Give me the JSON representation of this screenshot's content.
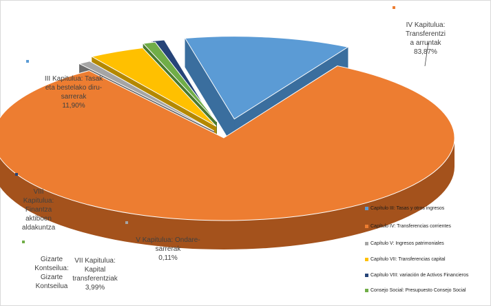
{
  "chart_data": {
    "type": "pie",
    "style": "3d-exploded",
    "slices": [
      {
        "label": "IV Kapitulua: Transferentzi a arruntak",
        "legend": "Capítulo IV: Transferencias corrientes",
        "value": 83.87,
        "value_text": "83,87%",
        "color": "#ED7D31",
        "side_color": "#A4521C",
        "label_text": "IV Kapitulua:\nTransferentzi\na arruntak\n83,87%"
      },
      {
        "label": "V Kapitulua: Ondare-sarrerak",
        "legend": "Capítulo V: Ingresos patrimoniales",
        "value": 0.11,
        "value_text": "0,11%",
        "color": "#A5A5A5",
        "side_color": "#6D6D6D",
        "label_text": "V Kapitulua: Ondare-\nsarrerak\n0,11%"
      },
      {
        "label": "VII Kapitulua: Kapital transferentziak",
        "legend": "Capítulo VII: Transferencias capital",
        "value": 3.99,
        "value_text": "3,99%",
        "color": "#FFC000",
        "side_color": "#B48800",
        "label_text": "VII Kapitulua:\nKapital\ntransferentziak\n3,99%"
      },
      {
        "label": "Gizarte Kontseilua: Gizarte Kontseilua",
        "legend": "Consejo Social: Presupuesto Consejo Social",
        "value": 0.03,
        "value_text": "",
        "color": "#70AD47",
        "side_color": "#4B7A2E",
        "label_text": "Gizarte\nKontseilua:\nGizarte\nKontseilua"
      },
      {
        "label": "VIII Kapitulua: Finantza aktiboen aldakuntza",
        "legend": "Capítulo VIII: variación de Activos Financieros",
        "value": 0.1,
        "value_text": "",
        "color": "#264478",
        "side_color": "#172B4D",
        "label_text": "VIII\nKapitulua:\nFinantza\naktiboen\naldakuntza"
      },
      {
        "label": "III Kapitulua: Tasak eta bestelako diru-sarrerak",
        "legend": "Capítulo III: Tasas y otros ingresos",
        "value": 11.9,
        "value_text": "11,90%",
        "color": "#5B9BD5",
        "side_color": "#3A6E9E",
        "label_text": "III Kapitulua: Tasak\neta bestelako diru-\nsarrerak\n11,90%"
      }
    ],
    "legend_order": [
      "Capítulo III: Tasas y otros ingresos",
      "Capítulo IV: Transferencias corrientes",
      "Capítulo V: Ingresos patrimoniales",
      "Capítulo VII: Transferencias capital",
      "Capítulo VIII: variación de Activos Financieros",
      "Consejo Social: Presupuesto Consejo Social"
    ],
    "legend_colors": [
      "#5B9BD5",
      "#ED7D31",
      "#A5A5A5",
      "#FFC000",
      "#264478",
      "#70AD47"
    ],
    "legend_position": "bottom-right"
  }
}
